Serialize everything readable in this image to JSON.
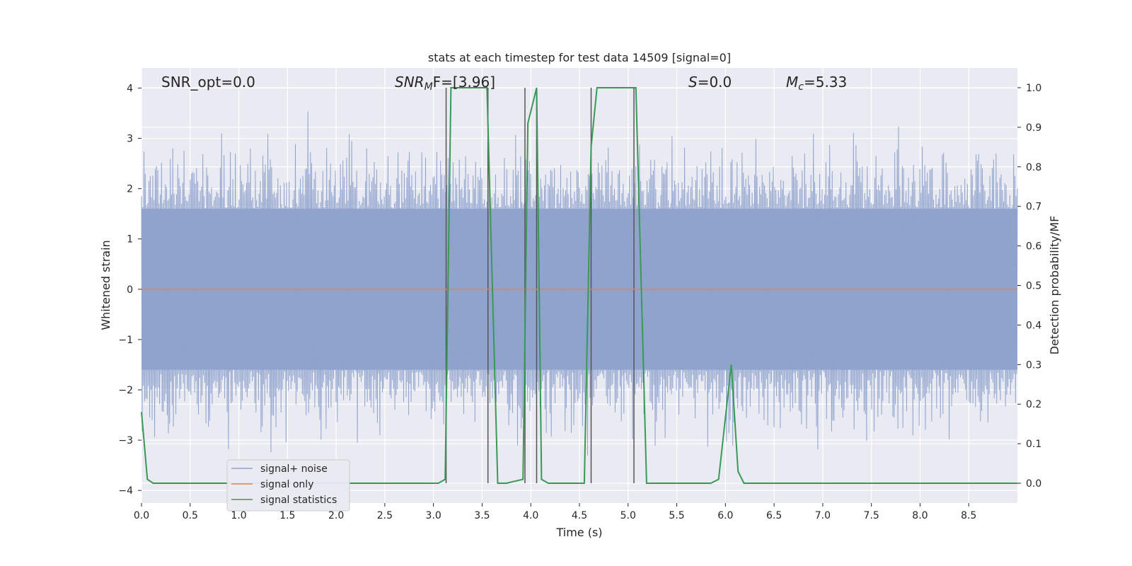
{
  "chart_data": {
    "type": "line",
    "title": "stats at each timestep for test data 14509 [signal=0]",
    "xlabel": "Time (s)",
    "ylabel_left": "Whitened strain",
    "ylabel_right": "Detection probability/MF",
    "xlim": [
      0.0,
      9.0
    ],
    "ylim_left": [
      -4.25,
      4.4
    ],
    "ylim_right": [
      -0.05,
      1.05
    ],
    "x_ticks": [
      "0.0",
      "0.5",
      "1.0",
      "1.5",
      "2.0",
      "2.5",
      "3.0",
      "3.5",
      "4.0",
      "4.5",
      "5.0",
      "5.5",
      "6.0",
      "6.5",
      "7.0",
      "7.5",
      "8.0",
      "8.5"
    ],
    "y_ticks_left": [
      "4",
      "3",
      "2",
      "1",
      "0",
      "−1",
      "−2",
      "−3",
      "−4"
    ],
    "y_ticks_right": [
      "1.0",
      "0.9",
      "0.8",
      "0.7",
      "0.6",
      "0.5",
      "0.4",
      "0.3",
      "0.2",
      "0.1",
      "0.0"
    ],
    "grid": true,
    "legend_position": "lower-left",
    "annotations": {
      "snr_opt": "SNR_opt=0.0",
      "snr_mf_italic": "SNR",
      "snr_mf_sub": "M",
      "snr_mf_rest": "F=[3.96]",
      "s_italic": "S",
      "s_rest": "=0.0",
      "mc_italic": "M",
      "mc_sub": "c",
      "mc_rest": "=5.33"
    },
    "series": [
      {
        "name": "signal+ noise",
        "color": "#8fa3cd",
        "axis": "left",
        "style": "noise",
        "envelope": [
          -1.6,
          1.6
        ]
      },
      {
        "name": "signal only",
        "color": "#dd8452",
        "axis": "left",
        "values_constant": 0.0
      },
      {
        "name": "signal statistics",
        "color": "#3a9a55",
        "axis": "right",
        "x": [
          0.0,
          0.06,
          0.12,
          3.05,
          3.12,
          3.18,
          3.55,
          3.66,
          3.75,
          3.92,
          3.97,
          4.06,
          4.11,
          4.18,
          4.55,
          4.62,
          4.68,
          5.08,
          5.19,
          5.85,
          5.93,
          6.06,
          6.13,
          6.19,
          9.0
        ],
        "y": [
          0.18,
          0.01,
          0.0,
          0.0,
          0.01,
          1.0,
          1.0,
          0.0,
          0.0,
          0.01,
          0.91,
          1.0,
          0.01,
          0.0,
          0.0,
          0.85,
          1.0,
          1.0,
          0.0,
          0.0,
          0.01,
          0.3,
          0.03,
          0.0,
          0.0
        ]
      }
    ],
    "vertical_markers_x": [
      3.13,
      3.56,
      3.94,
      4.06,
      4.62,
      5.06
    ]
  }
}
